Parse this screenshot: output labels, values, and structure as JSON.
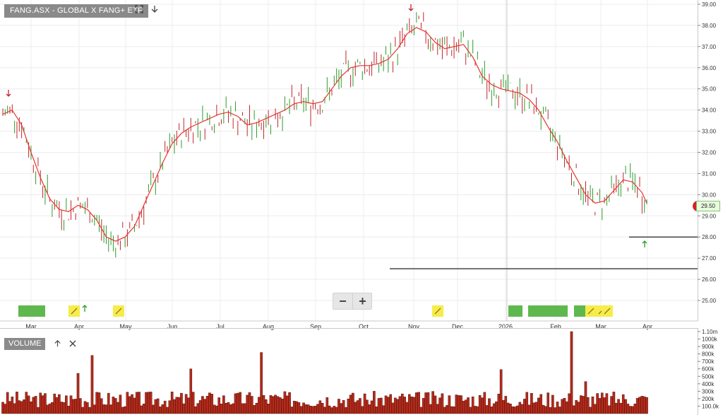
{
  "chart_title": "FANG.ASX - GLOBAL X FANG+ ETF",
  "toolbar": {
    "fullscreen_icon": "expand-icon",
    "download_icon": "arrow-down-icon"
  },
  "zoom": {
    "minus": "−",
    "plus": "+"
  },
  "volume_panel": {
    "title": "VOLUME",
    "up_icon": "arrow-up-icon",
    "close_icon": "close-icon"
  },
  "last_price_tag": "29.50",
  "colors": {
    "up": "#2a9d2a",
    "down": "#c0262d",
    "ma": "#e8332f",
    "volume_fill": "#b52a1a",
    "volume_stroke": "#3a0a05",
    "grid": "#ececec"
  },
  "chart_data": [
    {
      "type": "line",
      "series_kind": "ohlc-bars-with-moving-average",
      "x_axis": {
        "tick_labels": [
          "Mar",
          "Apr",
          "May",
          "Jun",
          "Jul",
          "Aug",
          "Sep",
          "Oct",
          "Nov",
          "Dec",
          "2026",
          "Feb",
          "Mar",
          "Apr"
        ]
      },
      "y_axis": {
        "side": "right",
        "range": [
          24.5,
          39.1
        ],
        "tick_labels": [
          "39.00",
          "38.00",
          "37.00",
          "36.00",
          "35.00",
          "34.00",
          "33.00",
          "32.00",
          "31.00",
          "30.00",
          "29.00",
          "28.00",
          "27.00",
          "26.00",
          "25.00"
        ],
        "tick_values": [
          39,
          38,
          37,
          36,
          35,
          34,
          33,
          32,
          31,
          30,
          29,
          28,
          27,
          26,
          25
        ]
      },
      "ma_points": [
        [
          0,
          33.8
        ],
        [
          2,
          34.0
        ],
        [
          4,
          33.3
        ],
        [
          6,
          32.0
        ],
        [
          8,
          30.8
        ],
        [
          10,
          29.8
        ],
        [
          12,
          29.3
        ],
        [
          14,
          29.2
        ],
        [
          16,
          29.5
        ],
        [
          18,
          29.3
        ],
        [
          20,
          28.8
        ],
        [
          22,
          28.0
        ],
        [
          24,
          27.8
        ],
        [
          26,
          28.0
        ],
        [
          28,
          28.5
        ],
        [
          30,
          29.5
        ],
        [
          32,
          30.5
        ],
        [
          34,
          31.5
        ],
        [
          36,
          32.4
        ],
        [
          38,
          32.9
        ],
        [
          40,
          33.2
        ],
        [
          42,
          33.4
        ],
        [
          44,
          33.6
        ],
        [
          46,
          33.8
        ],
        [
          48,
          33.9
        ],
        [
          50,
          33.7
        ],
        [
          52,
          33.3
        ],
        [
          54,
          33.4
        ],
        [
          56,
          33.6
        ],
        [
          58,
          33.8
        ],
        [
          60,
          34.0
        ],
        [
          62,
          34.3
        ],
        [
          64,
          34.4
        ],
        [
          66,
          34.3
        ],
        [
          68,
          34.4
        ],
        [
          70,
          35.0
        ],
        [
          72,
          35.6
        ],
        [
          74,
          36.0
        ],
        [
          76,
          36.1
        ],
        [
          78,
          36.1
        ],
        [
          80,
          36.2
        ],
        [
          82,
          36.4
        ],
        [
          84,
          36.9
        ],
        [
          86,
          37.6
        ],
        [
          88,
          37.9
        ],
        [
          90,
          37.7
        ],
        [
          92,
          37.2
        ],
        [
          94,
          36.9
        ],
        [
          96,
          37.0
        ],
        [
          98,
          37.1
        ],
        [
          100,
          36.5
        ],
        [
          102,
          35.6
        ],
        [
          104,
          35.2
        ],
        [
          106,
          35.0
        ],
        [
          108,
          34.9
        ],
        [
          110,
          34.8
        ],
        [
          112,
          34.5
        ],
        [
          114,
          34.0
        ],
        [
          116,
          33.2
        ],
        [
          118,
          32.5
        ],
        [
          120,
          31.6
        ],
        [
          122,
          30.8
        ],
        [
          124,
          30.0
        ],
        [
          126,
          29.6
        ],
        [
          128,
          29.7
        ],
        [
          130,
          30.2
        ],
        [
          132,
          30.7
        ],
        [
          134,
          30.6
        ],
        [
          136,
          30.1
        ],
        [
          137,
          29.6
        ]
      ],
      "annotations": [
        {
          "text": "29.50",
          "kind": "last-price"
        },
        {
          "kind": "horizontal-line",
          "value": 26.5
        },
        {
          "kind": "horizontal-line",
          "value": 28.0
        }
      ]
    },
    {
      "type": "bar",
      "name": "VOLUME",
      "y_axis": {
        "range": [
          0,
          1100000
        ],
        "tick_labels": [
          "1.10m",
          "1000k",
          "900k",
          "800k",
          "700k",
          "600k",
          "500k",
          "400k",
          "300k",
          "200k",
          "100.0k"
        ],
        "tick_values": [
          1100000,
          1000000,
          900000,
          800000,
          700000,
          600000,
          500000,
          400000,
          300000,
          200000,
          100000
        ]
      }
    }
  ]
}
